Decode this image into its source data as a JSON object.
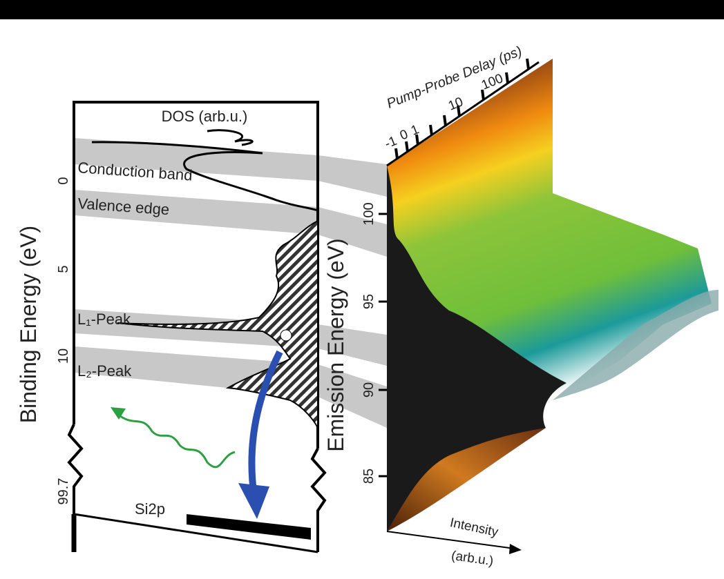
{
  "left_panel": {
    "axis_label": "Binding Energy (eV)",
    "top_label": "DOS (arb.u.)",
    "ticks": [
      "0",
      "5",
      "10",
      "99.7"
    ],
    "bands": [
      "Conduction band",
      "Valence edge",
      "L₁-Peak",
      "L₂-Peak"
    ],
    "core_label": "Si2p"
  },
  "right_panel": {
    "axis_label": "Emission Energy (eV)",
    "ticks": [
      "100",
      "95",
      "90",
      "85"
    ],
    "delay_label": "Pump-Probe Delay (ps)",
    "delay_ticks": [
      "-1",
      "0",
      "1",
      "10",
      "100"
    ],
    "intensity_label": "Intensity",
    "intensity_unit": "(arb.u.)"
  }
}
